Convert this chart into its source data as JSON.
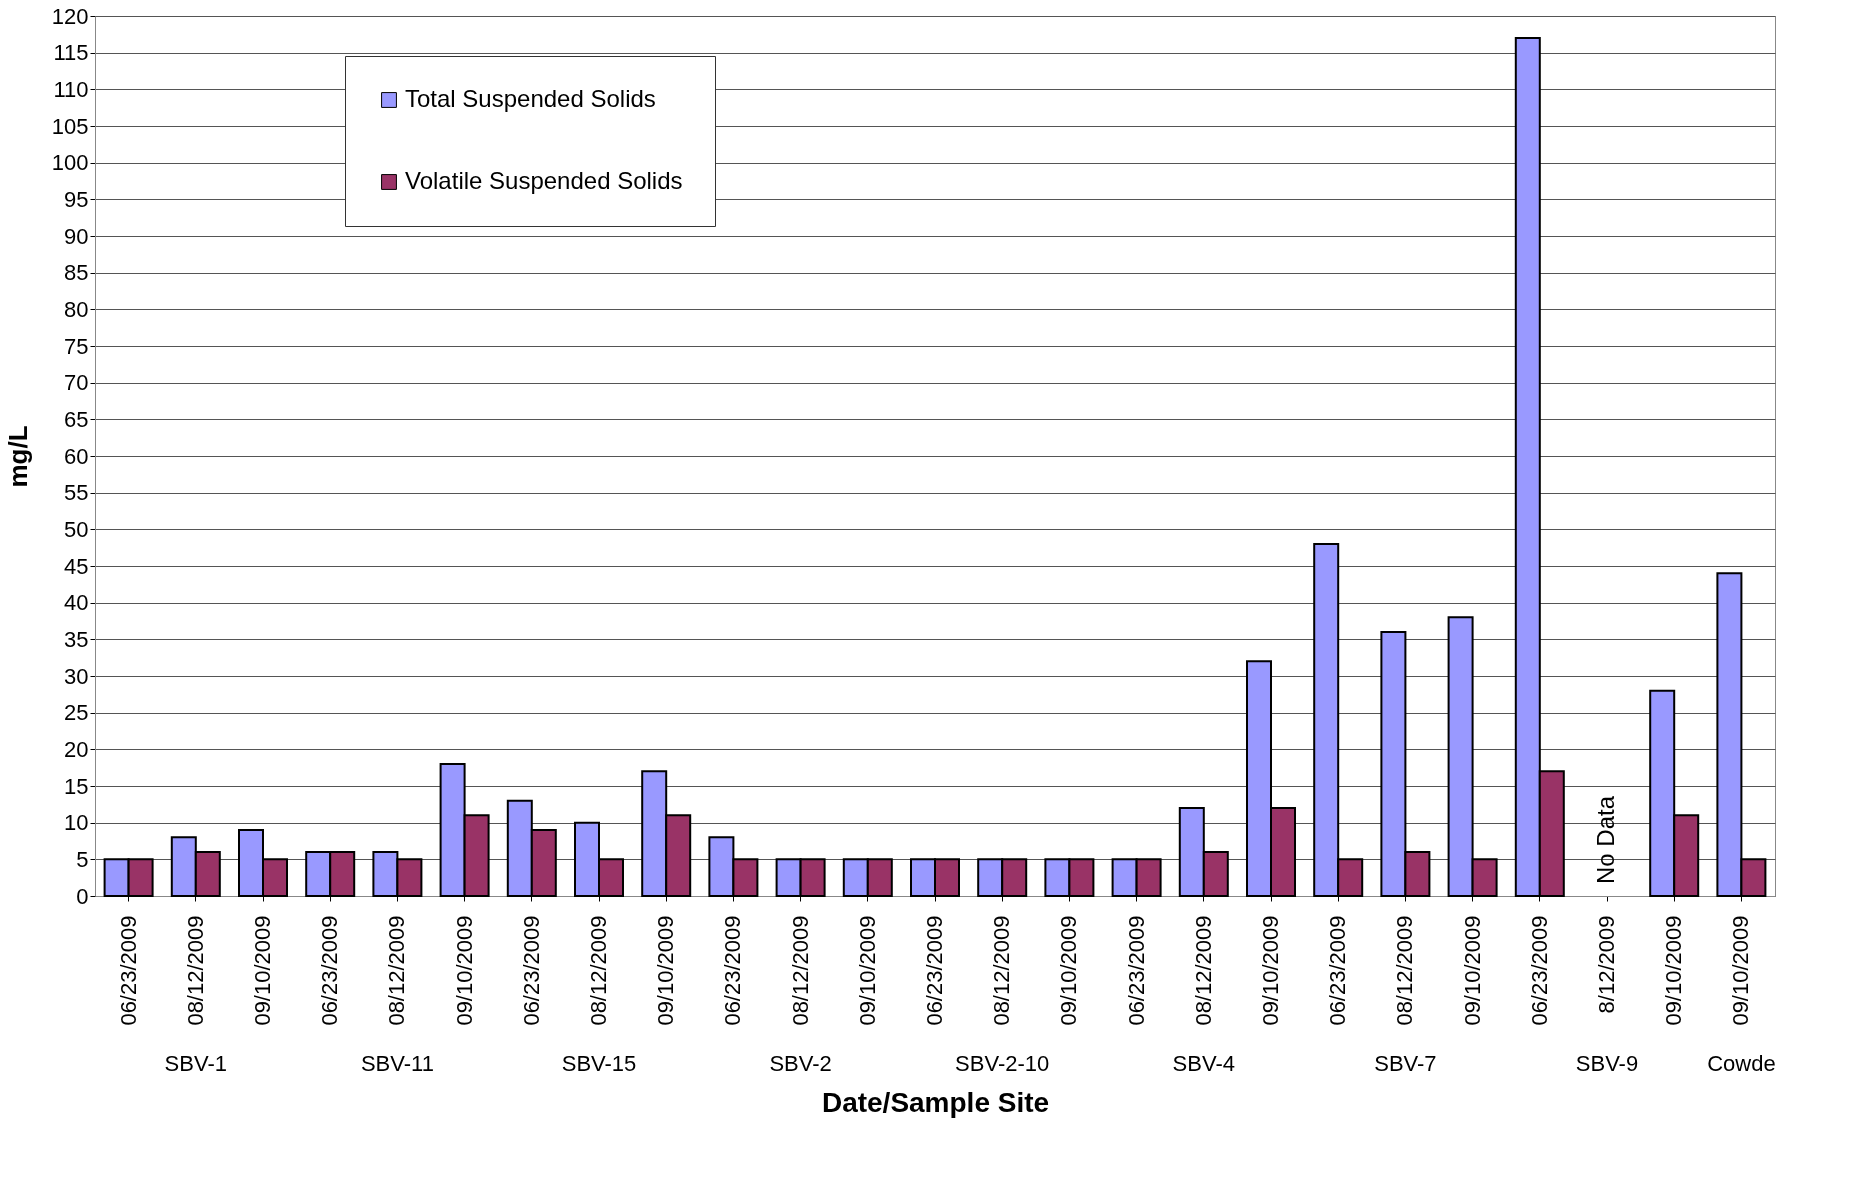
{
  "chart_data": {
    "type": "bar",
    "ylabel": "mg/L",
    "xlabel": "Date/Sample Site",
    "categories": [
      "06/23/2009",
      "08/12/2009",
      "09/10/2009",
      "06/23/2009",
      "08/12/2009",
      "09/10/2009",
      "06/23/2009",
      "08/12/2009",
      "09/10/2009",
      "06/23/2009",
      "08/12/2009",
      "09/10/2009",
      "06/23/2009",
      "08/12/2009",
      "09/10/2009",
      "06/23/2009",
      "08/12/2009",
      "09/10/2009",
      "06/23/2009",
      "08/12/2009",
      "09/10/2009",
      "06/23/2009",
      "8/12/2009",
      "09/10/2009",
      "09/10/2009"
    ],
    "series": [
      {
        "name": "Total Suspended Solids",
        "color": "#9999ff",
        "values": [
          5,
          8,
          9,
          6,
          6,
          18,
          13,
          10,
          17,
          8,
          5,
          5,
          5,
          5,
          5,
          5,
          12,
          32,
          48,
          36,
          38,
          117,
          null,
          28,
          44
        ]
      },
      {
        "name": "Volatile Suspended Solids",
        "color": "#993366",
        "values": [
          5,
          6,
          5,
          6,
          5,
          11,
          9,
          5,
          11,
          5,
          5,
          5,
          5,
          5,
          5,
          5,
          6,
          12,
          5,
          6,
          5,
          17,
          null,
          11,
          5
        ]
      }
    ],
    "ylim": [
      0,
      120
    ],
    "yticks": [
      0,
      5,
      10,
      15,
      20,
      25,
      30,
      35,
      40,
      45,
      50,
      55,
      60,
      65,
      70,
      75,
      80,
      85,
      90,
      95,
      100,
      105,
      110,
      115,
      120
    ],
    "grid": "y",
    "legend": "top left",
    "annotations": [
      "SBV-1",
      "SBV-11",
      "SBV-15",
      "SBV-2",
      "SBV-2-10",
      "SBV-4",
      "SBV-7",
      "SBV-9",
      "Cowde",
      "No Data"
    ]
  }
}
